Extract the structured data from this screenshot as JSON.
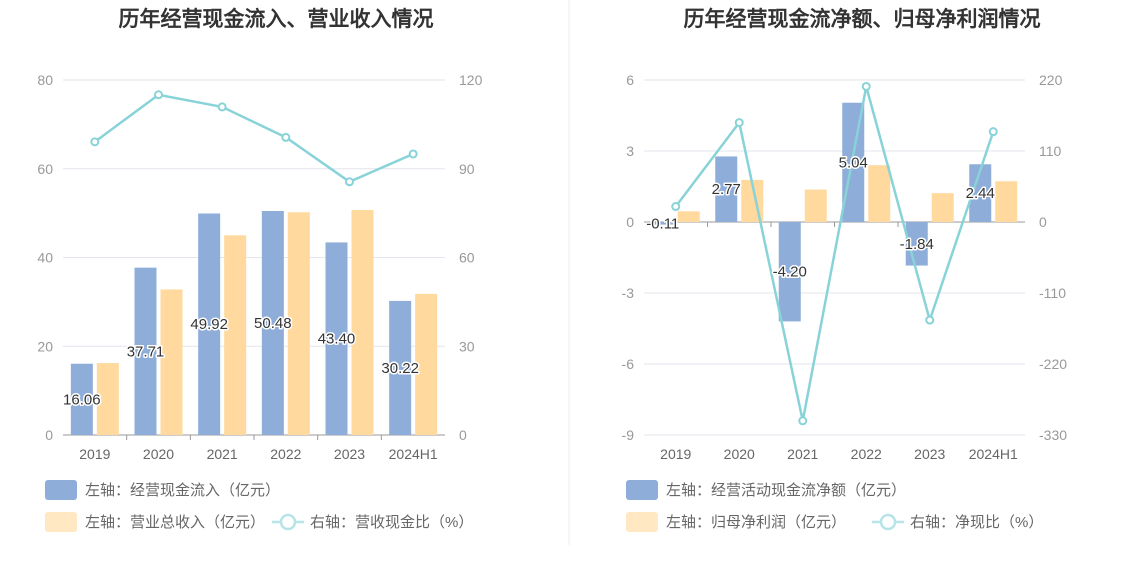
{
  "chart_data": [
    {
      "type": "bar",
      "title": "历年经营现金流入、营业收入情况",
      "categories": [
        "2019",
        "2020",
        "2021",
        "2022",
        "2023",
        "2024H1"
      ],
      "y_left": {
        "ticks": [
          "0",
          "20",
          "40",
          "60",
          "80"
        ],
        "ylim": [
          0,
          80
        ]
      },
      "y_right": {
        "ticks": [
          "0",
          "30",
          "60",
          "90",
          "120"
        ],
        "ylim": [
          0,
          120
        ]
      },
      "grid": true,
      "legend_position": "bottom-left",
      "series": [
        {
          "name": "左轴：经营现金流入（亿元）",
          "type": "bar",
          "axis": "left",
          "color": "#8eadd9",
          "values": [
            16.06,
            37.71,
            49.92,
            50.48,
            43.4,
            30.22
          ],
          "labels": [
            "16.06",
            "37.71",
            "49.92",
            "50.48",
            "43.40",
            "30.22"
          ]
        },
        {
          "name": "左轴：营业总收入（亿元）",
          "type": "bar",
          "axis": "left",
          "color": "#ffd99e",
          "values": [
            16.2,
            32.8,
            45.0,
            50.2,
            50.7,
            31.8
          ]
        },
        {
          "name": "右轴：营收现金比（%）",
          "type": "line",
          "axis": "right",
          "color": "#88d3d8",
          "values": [
            99.1,
            115.0,
            110.9,
            100.6,
            85.6,
            95.0
          ]
        }
      ]
    },
    {
      "type": "bar",
      "title": "历年经营现金流净额、归母净利润情况",
      "categories": [
        "2019",
        "2020",
        "2021",
        "2022",
        "2023",
        "2024H1"
      ],
      "y_left": {
        "ticks": [
          "-9",
          "-6",
          "-3",
          "0",
          "3",
          "6"
        ],
        "ylim": [
          -9,
          6
        ]
      },
      "y_right": {
        "ticks": [
          "-330",
          "-220",
          "-110",
          "0",
          "110",
          "220"
        ],
        "ylim": [
          -330,
          220
        ]
      },
      "grid": true,
      "legend_position": "bottom-left",
      "series": [
        {
          "name": "左轴：经营活动现金流净额（亿元）",
          "type": "bar",
          "axis": "left",
          "color": "#8eadd9",
          "values": [
            -0.11,
            2.77,
            -4.2,
            5.04,
            -1.84,
            2.44
          ],
          "labels": [
            "-0.11",
            "2.77",
            "-4.20",
            "5.04",
            "-1.84",
            "2.44"
          ]
        },
        {
          "name": "左轴：归母净利润（亿元）",
          "type": "bar",
          "axis": "left",
          "color": "#ffd99e",
          "values": [
            0.45,
            1.78,
            1.37,
            2.4,
            1.22,
            1.72
          ]
        },
        {
          "name": "右轴：净现比（%）",
          "type": "line",
          "axis": "right",
          "color": "#88d3d8",
          "values": [
            24,
            154,
            -308,
            210,
            -152,
            140
          ]
        }
      ]
    }
  ]
}
